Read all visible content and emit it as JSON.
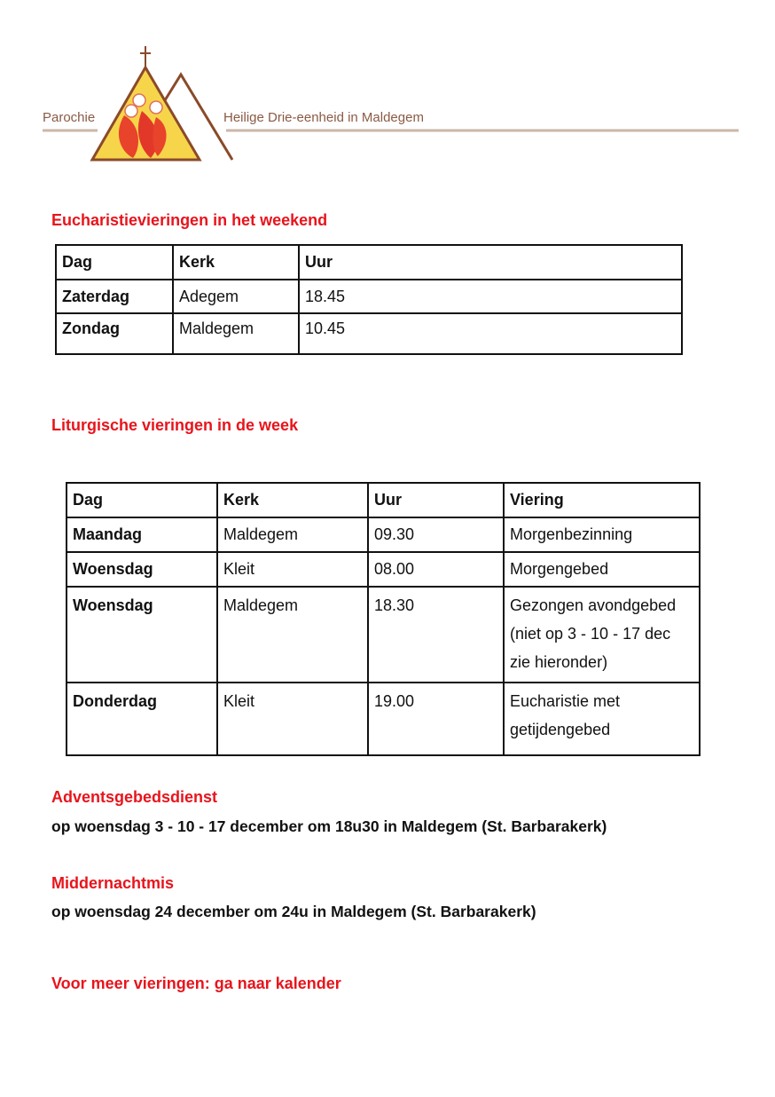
{
  "logo": {
    "left_text": "Parochie",
    "right_text": "Heilige Drie-eenheid in Maldegem"
  },
  "weekend": {
    "heading": "Eucharistievieringen in het weekend",
    "headers": [
      "Dag",
      "Kerk",
      "Uur"
    ],
    "rows": [
      [
        "Zaterdag",
        "Adegem",
        "18.45"
      ],
      [
        "Zondag",
        "Maldegem",
        "10.45"
      ]
    ]
  },
  "week": {
    "heading": "Liturgische vieringen in de week",
    "headers": [
      "Dag",
      "Kerk",
      "Uur",
      "Viering"
    ],
    "rows": [
      [
        "Maandag",
        "Maldegem",
        "09.30",
        "Morgenbezinning"
      ],
      [
        "Woensdag",
        "Kleit",
        "08.00",
        "Morgengebed"
      ],
      [
        "Woensdag",
        "Maldegem",
        "18.30",
        "Gezongen avondgebed (niet op 3 - 10 - 17 dec zie hieronder)"
      ],
      [
        "Donderdag",
        "Kleit",
        "19.00",
        "Eucharistie met getijdengebed"
      ]
    ]
  },
  "advent": {
    "heading": "Adventsgebedsdienst",
    "text": "op woensdag 3 - 10 - 17 december om 18u30 in Maldegem (St. Barbarakerk)"
  },
  "midnight": {
    "heading": "Middernachtmis",
    "text": "op woensdag 24 december om 24u in Maldegem (St. Barbarakerk)"
  },
  "more": {
    "link": "Voor meer vieringen: ga naar kalender"
  },
  "colors": {
    "heading": "#e8141c",
    "logo_brown": "#8a5a44"
  }
}
